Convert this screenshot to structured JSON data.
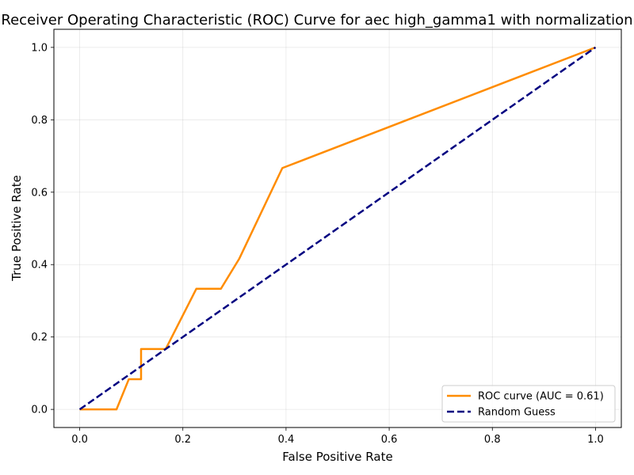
{
  "chart_data": {
    "type": "line",
    "title": "Receiver Operating Characteristic (ROC) Curve for aec high_gamma1 with normalization",
    "xlabel": "False Positive Rate",
    "ylabel": "True Positive Rate",
    "xlim": [
      -0.05,
      1.05
    ],
    "ylim": [
      -0.05,
      1.05
    ],
    "xticks": [
      0.0,
      0.2,
      0.4,
      0.6,
      0.8,
      1.0
    ],
    "yticks": [
      0.0,
      0.2,
      0.4,
      0.6,
      0.8,
      1.0
    ],
    "xtick_labels": [
      "0.0",
      "0.2",
      "0.4",
      "0.6",
      "0.8",
      "1.0"
    ],
    "ytick_labels": [
      "0.0",
      "0.2",
      "0.4",
      "0.6",
      "0.8",
      "1.0"
    ],
    "grid": true,
    "legend_position": "lower-right",
    "series": [
      {
        "name": "ROC curve (AUC = 0.61)",
        "color": "#ff8c00",
        "style": "solid",
        "x": [
          0.0,
          0.0714,
          0.0952,
          0.119,
          0.119,
          0.1667,
          0.2262,
          0.2738,
          0.3095,
          0.3929,
          1.0
        ],
        "y": [
          0.0,
          0.0,
          0.0833,
          0.0833,
          0.1667,
          0.1667,
          0.3333,
          0.3333,
          0.4167,
          0.6667,
          1.0
        ]
      },
      {
        "name": "Random Guess",
        "color": "#000080",
        "style": "dashed",
        "x": [
          0.0,
          1.0
        ],
        "y": [
          0.0,
          1.0
        ]
      }
    ]
  }
}
